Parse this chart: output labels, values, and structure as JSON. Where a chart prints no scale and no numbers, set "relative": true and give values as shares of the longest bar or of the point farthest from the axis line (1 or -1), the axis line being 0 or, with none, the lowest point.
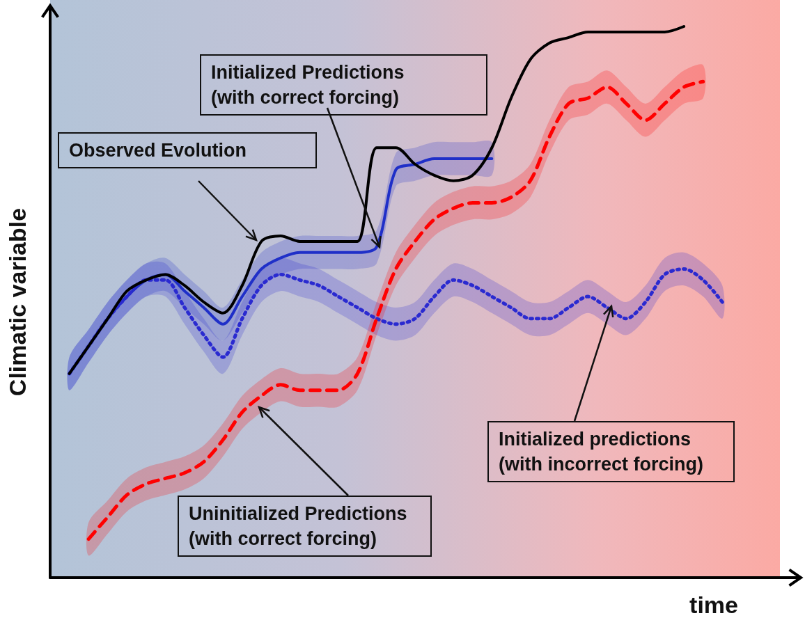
{
  "chart_data": {
    "type": "line",
    "relative": true,
    "xlabel": "time",
    "ylabel": "Climatic variable",
    "marker": "none",
    "categories": [
      null,
      null,
      null,
      null,
      null,
      null,
      null,
      null,
      null,
      null,
      null,
      null,
      null,
      null,
      null,
      null,
      null,
      null,
      null,
      null,
      null,
      null,
      null,
      null,
      null,
      null,
      null,
      null,
      null,
      null,
      null,
      null,
      null,
      null,
      null,
      null,
      null,
      null,
      null
    ],
    "series": [
      {
        "color": "#1f2fc8",
        "line_style": "solid",
        "values": [
          null,
          0.37,
          0.42,
          0.47,
          0.51,
          0.54,
          0.55,
          0.52,
          0.49,
          0.46,
          0.51,
          0.56,
          0.58,
          0.59,
          0.59,
          0.59,
          0.59,
          0.6,
          0.74,
          0.75,
          0.76,
          0.76,
          0.76,
          0.76,
          null,
          null,
          null,
          null,
          null,
          null,
          null,
          null,
          null,
          null,
          null,
          null,
          null,
          null,
          null
        ],
        "lower": [
          null,
          0.34,
          0.39,
          0.44,
          0.48,
          0.51,
          0.52,
          0.49,
          0.46,
          0.43,
          0.48,
          0.53,
          0.55,
          0.56,
          0.56,
          0.56,
          0.56,
          0.57,
          0.71,
          0.72,
          0.73,
          0.73,
          0.73,
          0.73,
          null,
          null,
          null,
          null,
          null,
          null,
          null,
          null,
          null,
          null,
          null,
          null,
          null,
          null,
          null
        ],
        "upper": [
          null,
          0.4,
          0.45,
          0.5,
          0.54,
          0.57,
          0.58,
          0.55,
          0.52,
          0.49,
          0.54,
          0.59,
          0.61,
          0.62,
          0.62,
          0.62,
          0.62,
          0.63,
          0.77,
          0.78,
          0.79,
          0.79,
          0.79,
          0.79,
          null,
          null,
          null,
          null,
          null,
          null,
          null,
          null,
          null,
          null,
          null,
          null,
          null,
          null,
          null
        ]
      },
      {
        "color": "#2a2ad0",
        "line_style": "dotted",
        "values": [
          null,
          0.37,
          0.42,
          0.47,
          0.51,
          0.54,
          0.54,
          0.49,
          0.44,
          0.4,
          0.47,
          0.53,
          0.55,
          0.54,
          0.53,
          0.51,
          0.49,
          0.47,
          0.46,
          0.47,
          0.51,
          0.54,
          0.53,
          0.51,
          0.49,
          0.47,
          0.47,
          0.49,
          0.51,
          0.49,
          0.47,
          0.5,
          0.55,
          0.56,
          0.54,
          0.5,
          null,
          null,
          null
        ],
        "lower": [
          null,
          0.34,
          0.39,
          0.44,
          0.48,
          0.51,
          0.51,
          0.46,
          0.41,
          0.37,
          0.44,
          0.5,
          0.52,
          0.51,
          0.5,
          0.48,
          0.46,
          0.44,
          0.43,
          0.44,
          0.48,
          0.51,
          0.5,
          0.48,
          0.46,
          0.44,
          0.44,
          0.46,
          0.48,
          0.46,
          0.44,
          0.47,
          0.52,
          0.53,
          0.51,
          0.47,
          null,
          null,
          null
        ],
        "upper": [
          null,
          0.4,
          0.45,
          0.5,
          0.54,
          0.57,
          0.57,
          0.52,
          0.47,
          0.43,
          0.5,
          0.56,
          0.58,
          0.57,
          0.56,
          0.54,
          0.52,
          0.5,
          0.49,
          0.5,
          0.54,
          0.57,
          0.56,
          0.54,
          0.52,
          0.5,
          0.5,
          0.52,
          0.54,
          0.52,
          0.5,
          0.53,
          0.58,
          0.59,
          0.57,
          0.53,
          null,
          null,
          null
        ]
      },
      {
        "color": "#ff0000",
        "line_style": "dashed",
        "values": [
          null,
          null,
          0.07,
          0.11,
          0.15,
          0.17,
          0.18,
          0.19,
          0.21,
          0.25,
          0.3,
          0.33,
          0.35,
          0.34,
          0.34,
          0.34,
          0.37,
          0.47,
          0.56,
          0.61,
          0.65,
          0.67,
          0.68,
          0.68,
          0.69,
          0.72,
          0.8,
          0.86,
          0.87,
          0.89,
          0.86,
          0.83,
          0.86,
          0.89,
          0.9,
          null,
          null,
          null,
          null
        ],
        "lower": [
          null,
          null,
          0.04,
          0.08,
          0.12,
          0.14,
          0.15,
          0.16,
          0.18,
          0.22,
          0.27,
          0.3,
          0.32,
          0.31,
          0.31,
          0.31,
          0.34,
          0.44,
          0.53,
          0.58,
          0.62,
          0.64,
          0.65,
          0.65,
          0.66,
          0.69,
          0.77,
          0.83,
          0.84,
          0.86,
          0.83,
          0.8,
          0.83,
          0.86,
          0.87,
          null,
          null,
          null,
          null
        ],
        "upper": [
          null,
          null,
          0.1,
          0.14,
          0.18,
          0.2,
          0.21,
          0.22,
          0.24,
          0.28,
          0.33,
          0.36,
          0.38,
          0.37,
          0.37,
          0.37,
          0.4,
          0.5,
          0.59,
          0.64,
          0.68,
          0.7,
          0.71,
          0.71,
          0.72,
          0.75,
          0.83,
          0.89,
          0.9,
          0.92,
          0.89,
          0.86,
          0.89,
          0.92,
          0.93,
          null,
          null,
          null,
          null
        ]
      },
      {
        "color": "#000000",
        "line_style": "solid",
        "values": [
          null,
          0.37,
          0.42,
          0.47,
          0.52,
          0.54,
          0.55,
          0.53,
          0.5,
          0.48,
          0.53,
          0.61,
          0.62,
          0.61,
          0.61,
          0.61,
          0.61,
          0.78,
          0.78,
          0.75,
          0.73,
          0.72,
          0.73,
          0.78,
          0.87,
          0.94,
          0.97,
          0.98,
          0.99,
          0.99,
          0.99,
          0.99,
          0.99,
          1.0,
          null,
          null,
          null,
          null,
          null
        ]
      }
    ],
    "annotations": [
      "Observed Evolution",
      "Initialized Predictions\n(with correct forcing)",
      "Initialized predictions\n(with incorrect forcing)",
      "Uninitialized Predictions\n(with correct forcing)"
    ]
  }
}
